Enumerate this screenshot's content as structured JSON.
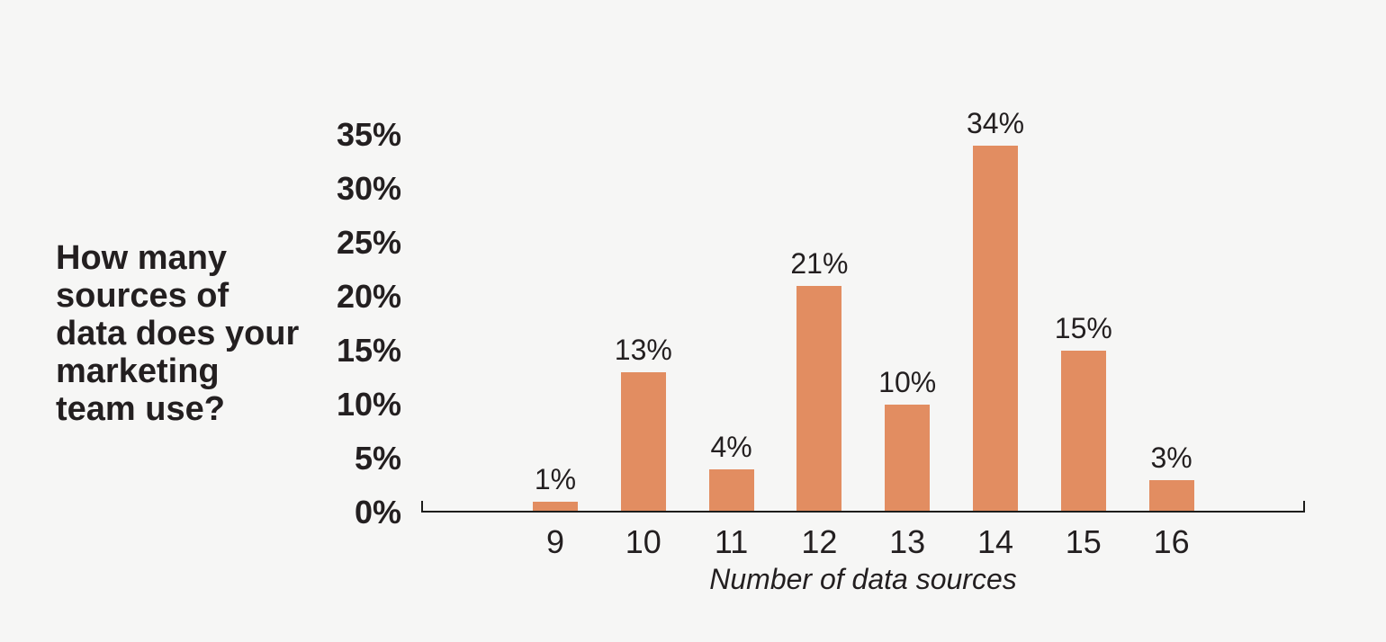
{
  "chart_data": {
    "type": "bar",
    "title": "How many sources of data does your marketing team use?",
    "title_lines": [
      "How many",
      "sources of",
      "data does your",
      "marketing",
      "team use?"
    ],
    "categories": [
      "9",
      "10",
      "11",
      "12",
      "13",
      "14",
      "15",
      "16"
    ],
    "values": [
      1,
      13,
      4,
      21,
      10,
      34,
      15,
      3
    ],
    "bar_labels": [
      "1%",
      "13%",
      "4%",
      "21%",
      "10%",
      "34%",
      "15%",
      "3%"
    ],
    "xlabel": "Number of data sources",
    "ylabel": "",
    "y_ticks": [
      "0%",
      "5%",
      "10%",
      "15%",
      "20%",
      "25%",
      "30%",
      "35%"
    ],
    "ylim": [
      0,
      35
    ],
    "grid": false,
    "legend": null,
    "colors": {
      "bar": "#e28d61",
      "background": "#f6f6f5",
      "text": "#231f20",
      "axis": "#1d1d1b"
    }
  }
}
